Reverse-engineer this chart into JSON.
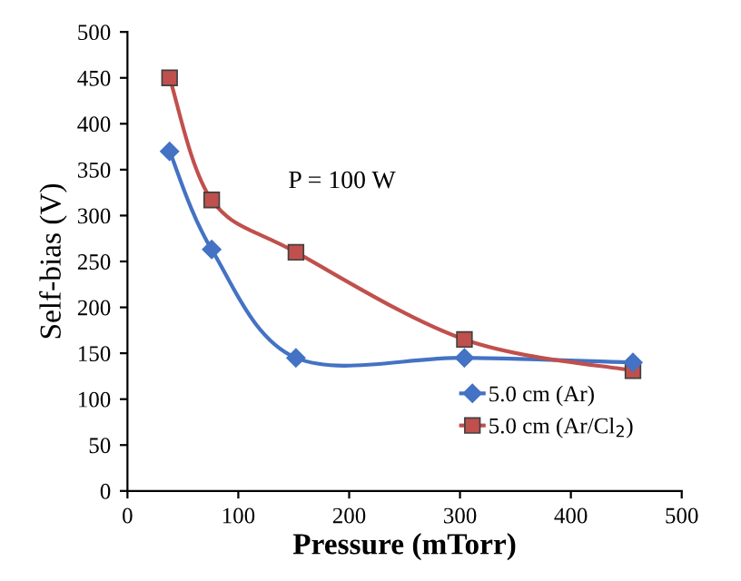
{
  "chart_data": {
    "type": "line",
    "xlabel": "Pressure (mTorr)",
    "ylabel": "Self-bias (V)",
    "x": [
      38,
      76,
      152,
      304,
      456
    ],
    "series": [
      {
        "name": "5.0 cm (Ar)",
        "color": "#4472c4",
        "marker": "diamond",
        "values": [
          370,
          263,
          145,
          145,
          140
        ]
      },
      {
        "name": "5.0 cm (Ar/Cl$_{2}$)",
        "color": "#c0504d",
        "marker": "square",
        "values": [
          450,
          317,
          260,
          165,
          131
        ]
      }
    ],
    "xlim": [
      0,
      500
    ],
    "xticks": [
      0,
      100,
      200,
      300,
      400,
      500
    ],
    "ylim": [
      0,
      500
    ],
    "yticks": [
      0,
      50,
      100,
      150,
      200,
      250,
      300,
      350,
      400,
      450,
      500
    ],
    "annotations": [
      "P = 100 W"
    ],
    "grid": false,
    "legend": "bottom right",
    "line_style": "solid"
  }
}
